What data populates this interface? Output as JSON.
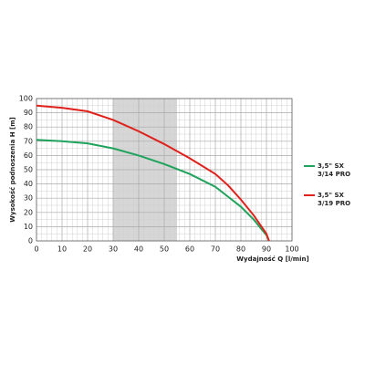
{
  "chart_data": {
    "type": "line",
    "x_label": "Wydajność Q [l/min]",
    "y_label": "Wysokość podnoszenia H [m]",
    "x": [
      0,
      10,
      20,
      30,
      40,
      50,
      60,
      70,
      75,
      80,
      85,
      90,
      91
    ],
    "series": [
      {
        "name": "3,5\" SX 3/14 PRO",
        "color": "#1fa35c",
        "values": [
          71,
          70,
          68.5,
          65,
          60,
          54,
          47,
          38,
          31,
          24,
          15,
          4,
          0
        ]
      },
      {
        "name": "3,5\" SX 3/19 PRO",
        "color": "#e0201b",
        "values": [
          95,
          93.5,
          91,
          85,
          77,
          68,
          58,
          47,
          39,
          29,
          18,
          5,
          0
        ]
      }
    ],
    "shaded_range": [
      30,
      55
    ],
    "xlim": [
      0,
      100
    ],
    "xticks": [
      0,
      10,
      20,
      30,
      40,
      50,
      60,
      70,
      80,
      90,
      100
    ],
    "ylim": [
      0,
      100
    ],
    "yticks": [
      0,
      10,
      20,
      30,
      40,
      50,
      60,
      70,
      80,
      90,
      100
    ],
    "grid": true
  }
}
